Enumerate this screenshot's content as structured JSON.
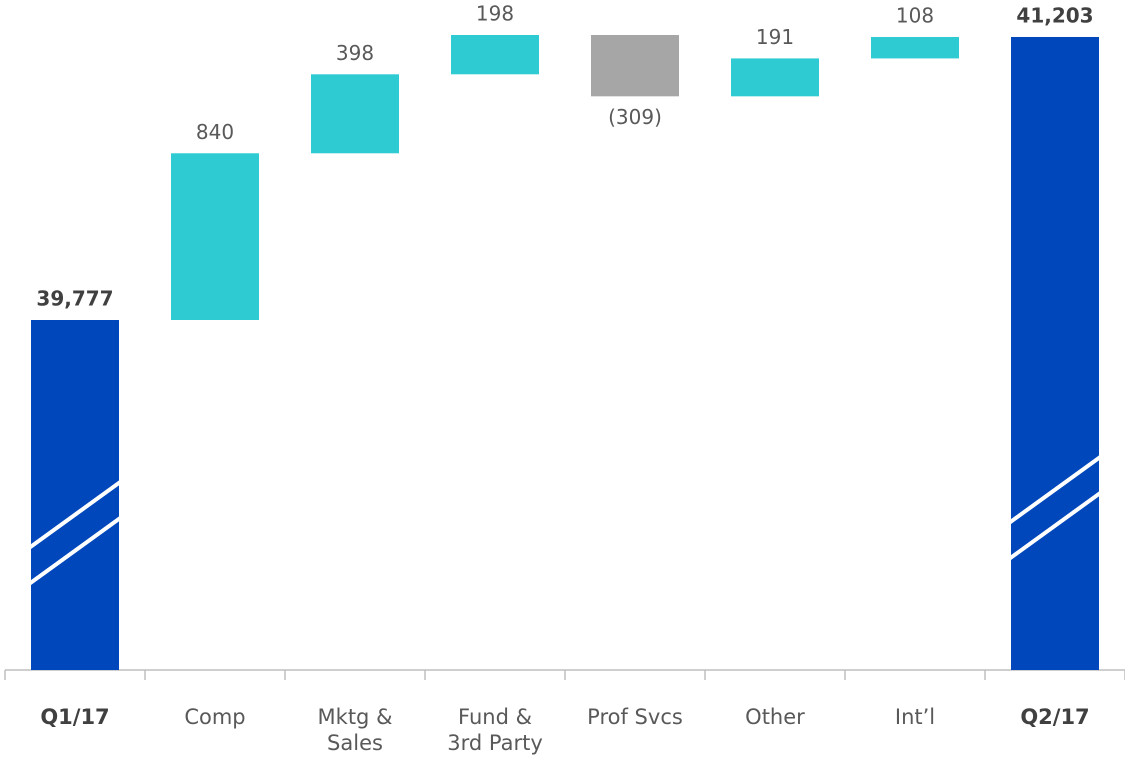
{
  "chart_data": {
    "type": "waterfall",
    "categories": [
      "Q1/17",
      "Comp",
      "Mktg & Sales",
      "Fund & 3rd Party",
      "Prof Svcs",
      "Other",
      "Int’l",
      "Q2/17"
    ],
    "values": [
      39777,
      840,
      398,
      198,
      -309,
      191,
      108,
      41203
    ],
    "value_labels": [
      "39,777",
      "840",
      "398",
      "198",
      "(309)",
      "191",
      "108",
      "41,203"
    ],
    "colors": {
      "total": "#0047bb",
      "increase": "#2ecbd3",
      "decrease": "#a6a6a6"
    },
    "broken_axis": true
  }
}
